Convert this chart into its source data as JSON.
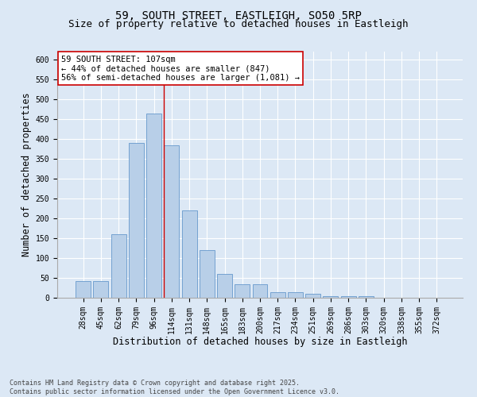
{
  "title1": "59, SOUTH STREET, EASTLEIGH, SO50 5RP",
  "title2": "Size of property relative to detached houses in Eastleigh",
  "xlabel": "Distribution of detached houses by size in Eastleigh",
  "ylabel": "Number of detached properties",
  "categories": [
    "28sqm",
    "45sqm",
    "62sqm",
    "79sqm",
    "96sqm",
    "114sqm",
    "131sqm",
    "148sqm",
    "165sqm",
    "183sqm",
    "200sqm",
    "217sqm",
    "234sqm",
    "251sqm",
    "269sqm",
    "286sqm",
    "303sqm",
    "320sqm",
    "338sqm",
    "355sqm",
    "372sqm"
  ],
  "values": [
    43,
    43,
    160,
    390,
    465,
    385,
    220,
    120,
    60,
    35,
    35,
    15,
    15,
    10,
    5,
    5,
    5,
    0,
    0,
    0,
    0
  ],
  "bar_color": "#b8cfe8",
  "bar_edge_color": "#6699cc",
  "background_color": "#dce8f5",
  "grid_color": "#ffffff",
  "vline_x": 4.57,
  "vline_color": "#cc0000",
  "annotation_text": "59 SOUTH STREET: 107sqm\n← 44% of detached houses are smaller (847)\n56% of semi-detached houses are larger (1,081) →",
  "annotation_box_color": "#ffffff",
  "annotation_edge_color": "#cc0000",
  "ylim": [
    0,
    620
  ],
  "yticks": [
    0,
    50,
    100,
    150,
    200,
    250,
    300,
    350,
    400,
    450,
    500,
    550,
    600
  ],
  "footnote": "Contains HM Land Registry data © Crown copyright and database right 2025.\nContains public sector information licensed under the Open Government Licence v3.0.",
  "title_fontsize": 10,
  "subtitle_fontsize": 9,
  "label_fontsize": 8.5,
  "tick_fontsize": 7,
  "annotation_fontsize": 7.5,
  "footnote_fontsize": 6
}
